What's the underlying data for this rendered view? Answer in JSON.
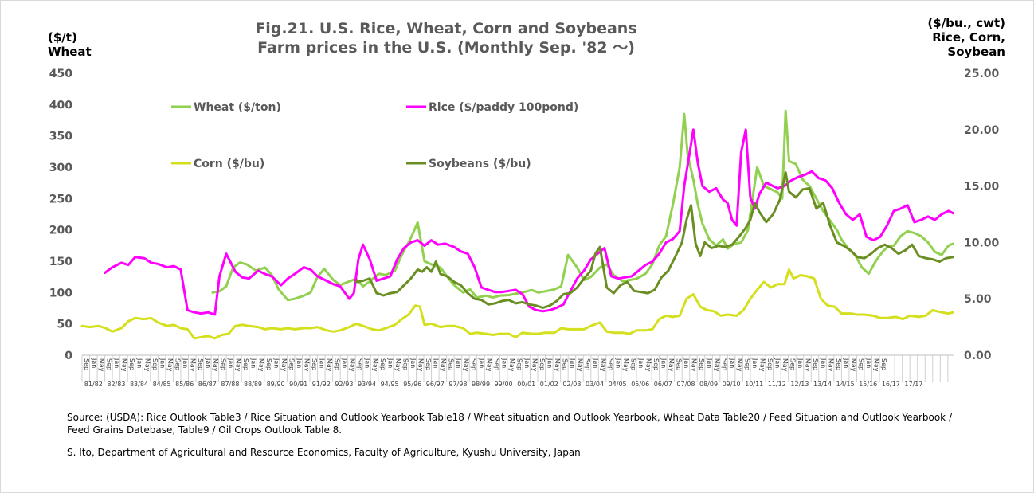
{
  "title_line1": "Fig.21. U.S. Rice, Wheat, Corn and Soybeans",
  "title_line2": "Farm prices in the U.S. (Monthly Sep. '82 ～)",
  "left_unit_line1": "($/t)",
  "left_unit_line2": "Wheat",
  "right_unit_line1": "($/bu., cwt)",
  "right_unit_line2": "Rice, Corn,",
  "right_unit_line3": "Soybean",
  "source": "Source: (USDA): Rice Outlook  Table3 / Rice Situation and Outlook Yearbook  Table18 / Wheat situation and Outlook Yearbook, Wheat Data Table20   / Feed Situation and Outlook Yearbook   / Feed Grains Datebase,  Table9   / Oil Crops Outlook   Table 8.",
  "credit": "S. Ito, Department of Agricultural and Resource Economics, Faculty of Agriculture, Kyushu University, Japan",
  "colors": {
    "wheat": "#92d050",
    "rice": "#ff00ff",
    "corn": "#d4e01e",
    "soybeans": "#6b8e23",
    "axis_text": "#595959",
    "grid": "#d9d9d9"
  },
  "chart_data": {
    "type": "line",
    "left_axis": {
      "label": "($/t) Wheat",
      "ylim": [
        0,
        450
      ],
      "ticks": [
        "0",
        "50",
        "100",
        "150",
        "200",
        "250",
        "300",
        "350",
        "400",
        "450"
      ]
    },
    "right_axis": {
      "label": "($/bu., cwt) Rice, Corn, Soybean",
      "ylim": [
        0,
        25
      ],
      "ticks": [
        "0.00",
        "5.00",
        "10.00",
        "15.00",
        "20.00",
        "25.00"
      ]
    },
    "month_ticks": [
      "Sep",
      "Jan",
      "May"
    ],
    "year_labels": [
      "81/82",
      "82/83",
      "83/84",
      "84/85",
      "85/86",
      "86/87",
      "87/88",
      "88/89",
      "89/90",
      "90/91",
      "91/92",
      "92/93",
      "93/94",
      "94/95",
      "95/96",
      "96/97",
      "97/98",
      "98/99",
      "99/00",
      "00/01",
      "01/02",
      "02/03",
      "03/04",
      "04/05",
      "05/06",
      "06/07",
      "07/08",
      "08/09",
      "09/10",
      "10/11",
      "11/12",
      "12/13",
      "13/14",
      "14/15",
      "15/16",
      "16/17",
      "17/17"
    ],
    "legend": {
      "wheat": "Wheat  ($/ton)",
      "rice": "Rice  ($/paddy 100pond)",
      "corn": "Corn  ($/bu)",
      "soybeans": "Soybeans  ($/bu)"
    },
    "series": [
      {
        "name": "Wheat  ($/ton)",
        "axis": "left",
        "x": [
          1987.4,
          1987.7,
          1988.0,
          1988.3,
          1988.6,
          1988.9,
          1989.3,
          1989.7,
          1990.0,
          1990.3,
          1990.7,
          1991.0,
          1991.4,
          1991.7,
          1992.0,
          1992.3,
          1992.7,
          1993.0,
          1993.4,
          1993.7,
          1994.0,
          1994.3,
          1994.7,
          1995.0,
          1995.4,
          1995.7,
          1996.0,
          1996.2,
          1996.4,
          1996.7,
          1997.0,
          1997.4,
          1997.7,
          1998.0,
          1998.4,
          1998.7,
          1999.0,
          1999.4,
          1999.7,
          2000.0,
          2000.4,
          2000.7,
          2001.0,
          2001.4,
          2001.7,
          2002.0,
          2002.4,
          2002.7,
          2003.0,
          2003.4,
          2003.7,
          2004.0,
          2004.4,
          2004.7,
          2005.0,
          2005.4,
          2005.7,
          2006.0,
          2006.4,
          2006.7,
          2007.0,
          2007.3,
          2007.6,
          2007.9,
          2008.1,
          2008.25,
          2008.5,
          2008.7,
          2008.9,
          2009.2,
          2009.5,
          2009.8,
          2010.0,
          2010.3,
          2010.6,
          2010.9,
          2011.1,
          2011.3,
          2011.6,
          2011.9,
          2012.2,
          2012.4,
          2012.55,
          2012.7,
          2013.0,
          2013.3,
          2013.6,
          2013.9,
          2014.2,
          2014.5,
          2014.8,
          2015.0,
          2015.3,
          2015.6,
          2015.9,
          2016.2,
          2016.5,
          2016.8,
          2017.0,
          2017.3,
          2017.6,
          2017.9,
          2018.2,
          2018.5,
          2018.8,
          2019.1,
          2019.4,
          2019.7,
          2019.9
        ],
        "values": [
          100,
          102,
          110,
          140,
          148,
          145,
          135,
          140,
          128,
          105,
          88,
          90,
          95,
          100,
          125,
          138,
          120,
          112,
          118,
          122,
          110,
          118,
          130,
          128,
          135,
          160,
          180,
          195,
          212,
          150,
          145,
          140,
          125,
          112,
          100,
          105,
          92,
          95,
          92,
          95,
          96,
          98,
          100,
          104,
          100,
          102,
          105,
          110,
          160,
          140,
          120,
          125,
          140,
          145,
          128,
          118,
          120,
          122,
          130,
          145,
          175,
          190,
          240,
          300,
          385,
          320,
          280,
          240,
          210,
          185,
          175,
          185,
          170,
          178,
          180,
          200,
          250,
          300,
          270,
          265,
          260,
          250,
          390,
          310,
          305,
          280,
          270,
          250,
          230,
          215,
          200,
          185,
          170,
          160,
          140,
          130,
          150,
          165,
          172,
          175,
          190,
          198,
          195,
          190,
          180,
          165,
          160,
          175,
          178
        ]
      },
      {
        "name": "Rice  ($/paddy 100pond)",
        "axis": "right",
        "x": [
          1982.67,
          1983.0,
          1983.4,
          1983.7,
          1984.0,
          1984.4,
          1984.7,
          1985.0,
          1985.4,
          1985.7,
          1986.0,
          1986.3,
          1986.6,
          1986.9,
          1987.2,
          1987.5,
          1987.7,
          1988.0,
          1988.4,
          1988.7,
          1989.0,
          1989.4,
          1989.7,
          1990.0,
          1990.4,
          1990.7,
          1991.0,
          1991.4,
          1991.7,
          1992.0,
          1992.4,
          1992.7,
          1993.0,
          1993.4,
          1993.6,
          1993.8,
          1994.0,
          1994.3,
          1994.6,
          1994.9,
          1995.2,
          1995.5,
          1995.8,
          1996.1,
          1996.4,
          1996.7,
          1997.0,
          1997.3,
          1997.6,
          1998.0,
          1998.3,
          1998.6,
          1998.9,
          1999.2,
          1999.5,
          1999.8,
          2000.1,
          2000.4,
          2000.7,
          2001.0,
          2001.3,
          2001.6,
          2001.9,
          2002.2,
          2002.5,
          2002.8,
          2003.0,
          2003.4,
          2003.7,
          2004.0,
          2004.3,
          2004.6,
          2004.9,
          2005.2,
          2005.5,
          2005.8,
          2006.1,
          2006.4,
          2006.7,
          2007.0,
          2007.3,
          2007.6,
          2007.9,
          2008.1,
          2008.3,
          2008.5,
          2008.7,
          2008.9,
          2009.2,
          2009.5,
          2009.8,
          2010.0,
          2010.2,
          2010.4,
          2010.6,
          2010.8,
          2011.0,
          2011.2,
          2011.4,
          2011.7,
          2012.0,
          2012.2,
          2012.5,
          2012.8,
          2013.1,
          2013.4,
          2013.7,
          2014.0,
          2014.3,
          2014.6,
          2014.9,
          2015.2,
          2015.5,
          2015.8,
          2016.1,
          2016.4,
          2016.7,
          2017.0,
          2017.3,
          2017.6,
          2017.9,
          2018.2,
          2018.5,
          2018.8,
          2019.1,
          2019.4,
          2019.7,
          2019.9
        ],
        "values": [
          7.3,
          7.8,
          8.2,
          8.0,
          8.7,
          8.6,
          8.2,
          8.1,
          7.8,
          7.9,
          7.6,
          4.0,
          3.8,
          3.7,
          3.8,
          3.6,
          7.0,
          9.0,
          7.4,
          6.9,
          6.8,
          7.5,
          7.2,
          7.0,
          6.2,
          6.8,
          7.2,
          7.8,
          7.6,
          7.0,
          6.6,
          6.3,
          6.1,
          5.0,
          5.5,
          8.5,
          9.8,
          8.5,
          6.6,
          6.8,
          7.0,
          8.5,
          9.5,
          10.0,
          10.2,
          9.7,
          10.2,
          9.8,
          9.9,
          9.6,
          9.2,
          9.0,
          7.8,
          6.0,
          5.8,
          5.6,
          5.6,
          5.7,
          5.8,
          5.4,
          4.3,
          4.0,
          3.9,
          4.0,
          4.2,
          4.5,
          5.3,
          6.8,
          7.5,
          8.5,
          9.0,
          9.5,
          7.0,
          6.8,
          6.9,
          7.0,
          7.5,
          8.0,
          8.3,
          9.0,
          10.0,
          10.3,
          11.0,
          15.0,
          17.5,
          20.0,
          17.0,
          15.0,
          14.5,
          14.8,
          13.8,
          13.5,
          12.0,
          11.5,
          18.0,
          20.0,
          14.0,
          13.0,
          14.3,
          15.3,
          15.0,
          14.8,
          15.0,
          15.5,
          15.8,
          16.0,
          16.3,
          15.7,
          15.5,
          14.8,
          13.5,
          12.5,
          12.0,
          12.5,
          10.5,
          10.2,
          10.5,
          11.5,
          12.8,
          13.0,
          13.3,
          11.8,
          12.0,
          12.3,
          12.0,
          12.5,
          12.8,
          12.6
        ]
      },
      {
        "name": "Corn  ($/bu)",
        "axis": "right",
        "x": [
          1981.67,
          1982.0,
          1982.4,
          1982.7,
          1983.0,
          1983.4,
          1983.7,
          1984.0,
          1984.4,
          1984.7,
          1985.0,
          1985.4,
          1985.7,
          1986.0,
          1986.3,
          1986.6,
          1986.9,
          1987.2,
          1987.5,
          1987.8,
          1988.1,
          1988.4,
          1988.7,
          1989.0,
          1989.4,
          1989.7,
          1990.0,
          1990.4,
          1990.7,
          1991.0,
          1991.4,
          1991.7,
          1992.0,
          1992.4,
          1992.7,
          1993.0,
          1993.4,
          1993.7,
          1994.0,
          1994.4,
          1994.7,
          1995.0,
          1995.4,
          1995.7,
          1996.0,
          1996.3,
          1996.5,
          1996.7,
          1997.0,
          1997.4,
          1997.7,
          1998.0,
          1998.4,
          1998.7,
          1999.0,
          1999.4,
          1999.7,
          2000.0,
          2000.4,
          2000.7,
          2001.0,
          2001.4,
          2001.7,
          2002.0,
          2002.4,
          2002.7,
          2003.0,
          2003.4,
          2003.7,
          2004.0,
          2004.4,
          2004.7,
          2005.0,
          2005.4,
          2005.7,
          2006.0,
          2006.4,
          2006.7,
          2007.0,
          2007.3,
          2007.6,
          2007.9,
          2008.2,
          2008.5,
          2008.8,
          2009.1,
          2009.4,
          2009.7,
          2010.0,
          2010.4,
          2010.7,
          2011.0,
          2011.3,
          2011.6,
          2011.9,
          2012.2,
          2012.5,
          2012.7,
          2012.9,
          2013.2,
          2013.5,
          2013.8,
          2014.1,
          2014.4,
          2014.7,
          2015.0,
          2015.4,
          2015.7,
          2016.0,
          2016.4,
          2016.7,
          2017.0,
          2017.4,
          2017.7,
          2018.0,
          2018.4,
          2018.7,
          2019.0,
          2019.4,
          2019.7,
          2019.9
        ],
        "values": [
          2.6,
          2.5,
          2.6,
          2.4,
          2.1,
          2.4,
          3.0,
          3.3,
          3.2,
          3.3,
          2.9,
          2.6,
          2.7,
          2.4,
          2.3,
          1.5,
          1.6,
          1.7,
          1.5,
          1.8,
          1.9,
          2.6,
          2.7,
          2.6,
          2.5,
          2.3,
          2.4,
          2.3,
          2.4,
          2.3,
          2.4,
          2.4,
          2.5,
          2.2,
          2.1,
          2.2,
          2.5,
          2.8,
          2.6,
          2.3,
          2.2,
          2.4,
          2.7,
          3.2,
          3.6,
          4.4,
          4.3,
          2.7,
          2.8,
          2.5,
          2.6,
          2.6,
          2.4,
          1.9,
          2.0,
          1.9,
          1.8,
          1.9,
          1.9,
          1.6,
          2.0,
          1.9,
          1.9,
          2.0,
          2.0,
          2.4,
          2.3,
          2.3,
          2.3,
          2.6,
          2.9,
          2.1,
          2.0,
          2.0,
          1.9,
          2.2,
          2.2,
          2.3,
          3.2,
          3.5,
          3.4,
          3.5,
          5.0,
          5.4,
          4.3,
          4.0,
          3.9,
          3.5,
          3.6,
          3.5,
          4.0,
          5.0,
          5.8,
          6.5,
          6.0,
          6.3,
          6.3,
          7.6,
          6.8,
          7.1,
          7.0,
          6.8,
          5.0,
          4.4,
          4.3,
          3.7,
          3.7,
          3.6,
          3.6,
          3.5,
          3.3,
          3.3,
          3.4,
          3.2,
          3.5,
          3.4,
          3.5,
          4.0,
          3.8,
          3.7,
          3.8
        ]
      },
      {
        "name": "Soybeans  ($/bu)",
        "axis": "right",
        "x": [
          1993.7,
          1994.0,
          1994.3,
          1994.6,
          1994.9,
          1995.2,
          1995.5,
          1995.8,
          1996.1,
          1996.4,
          1996.6,
          1996.8,
          1997.0,
          1997.2,
          1997.4,
          1997.7,
          1998.0,
          1998.3,
          1998.6,
          1998.9,
          1999.2,
          1999.5,
          1999.8,
          2000.1,
          2000.4,
          2000.7,
          2001.0,
          2001.3,
          2001.6,
          2001.9,
          2002.2,
          2002.5,
          2002.8,
          2003.1,
          2003.4,
          2003.7,
          2004.0,
          2004.2,
          2004.4,
          2004.7,
          2005.0,
          2005.3,
          2005.6,
          2005.9,
          2006.2,
          2006.5,
          2006.8,
          2007.1,
          2007.4,
          2007.7,
          2008.0,
          2008.2,
          2008.4,
          2008.6,
          2008.8,
          2009.0,
          2009.3,
          2009.6,
          2009.9,
          2010.2,
          2010.5,
          2010.8,
          2011.0,
          2011.2,
          2011.4,
          2011.7,
          2012.0,
          2012.3,
          2012.55,
          2012.7,
          2013.0,
          2013.3,
          2013.6,
          2013.9,
          2014.2,
          2014.5,
          2014.8,
          2015.1,
          2015.4,
          2015.7,
          2016.0,
          2016.3,
          2016.6,
          2016.9,
          2017.2,
          2017.5,
          2017.8,
          2018.1,
          2018.4,
          2018.7,
          2019.0,
          2019.3,
          2019.6,
          2019.9
        ],
        "values": [
          6.5,
          6.6,
          6.8,
          5.5,
          5.3,
          5.5,
          5.6,
          6.2,
          6.8,
          7.6,
          7.4,
          7.8,
          7.4,
          8.3,
          7.2,
          7.0,
          6.5,
          6.2,
          5.5,
          5.0,
          4.9,
          4.5,
          4.6,
          4.8,
          4.9,
          4.6,
          4.7,
          4.5,
          4.4,
          4.2,
          4.4,
          4.8,
          5.4,
          5.5,
          6.0,
          6.8,
          7.5,
          9.0,
          9.6,
          6.0,
          5.5,
          6.2,
          6.5,
          5.7,
          5.6,
          5.5,
          5.8,
          6.9,
          7.5,
          8.7,
          10.0,
          12.0,
          13.3,
          9.9,
          8.8,
          10.0,
          9.5,
          9.7,
          9.6,
          9.8,
          10.5,
          11.3,
          12.0,
          13.5,
          12.7,
          11.8,
          12.5,
          13.8,
          16.2,
          14.5,
          14.0,
          14.7,
          14.8,
          13.0,
          13.5,
          11.5,
          10.0,
          9.7,
          9.3,
          8.7,
          8.6,
          9.0,
          9.5,
          9.8,
          9.5,
          9.0,
          9.3,
          9.8,
          8.8,
          8.6,
          8.5,
          8.3,
          8.6,
          8.7
        ]
      }
    ]
  }
}
